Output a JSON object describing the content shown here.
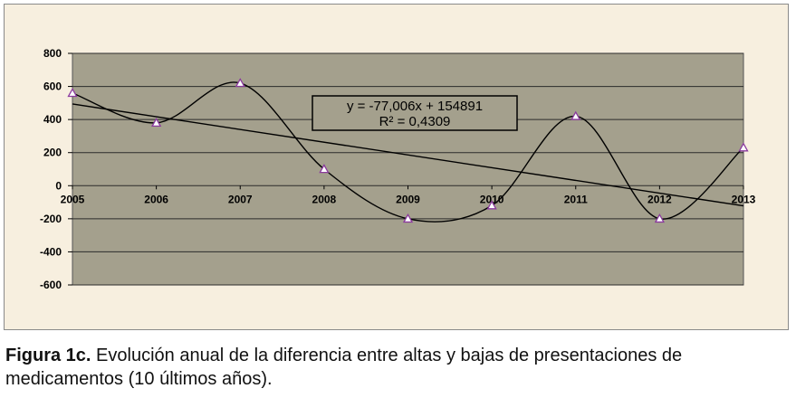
{
  "chart_data": {
    "type": "line",
    "x": [
      2005,
      2006,
      2007,
      2008,
      2009,
      2010,
      2011,
      2012,
      2013
    ],
    "series": [
      {
        "values": [
          560,
          380,
          620,
          100,
          -200,
          -120,
          420,
          -200,
          230
        ]
      }
    ],
    "trendline": {
      "type": "linear",
      "slope": -77.006,
      "intercept": 154891,
      "equation_label": "y = -77,006x + 154891",
      "r2_label": "R² = 0,4309"
    },
    "x_tick_labels": [
      "2005",
      "2006",
      "2007",
      "2008",
      "2009",
      "2010",
      "2011",
      "2012",
      "2013"
    ],
    "y_ticks": [
      800,
      600,
      400,
      200,
      0,
      -200,
      -400,
      -600
    ],
    "y_tick_labels": [
      "800",
      "600",
      "400",
      "200",
      "0",
      "-200",
      "-400",
      "-600"
    ],
    "ylim": [
      -600,
      800
    ],
    "grid": true,
    "colors": {
      "plot_background": "#a4a08d",
      "frame_background": "#f7efdf",
      "line": "#000000",
      "marker": "#8b3a9e"
    }
  },
  "caption": {
    "label": "Figura 1c.",
    "text": " Evolución anual de la diferencia entre altas y bajas de presentaciones de medicamentos (10 últimos años)."
  }
}
